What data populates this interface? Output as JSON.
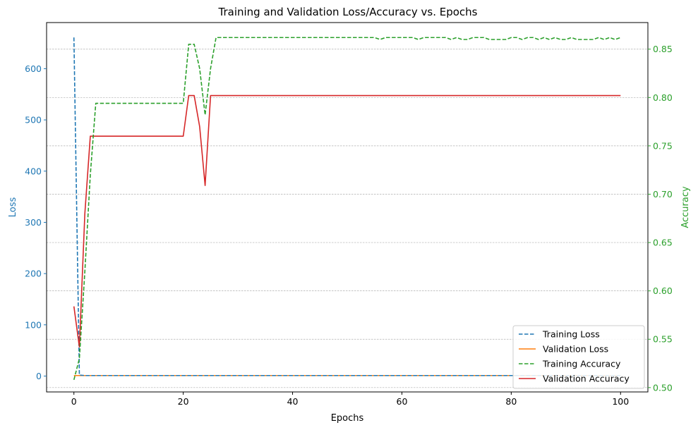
{
  "chart_data": {
    "type": "line",
    "title": "Training and Validation Loss/Accuracy vs. Epochs",
    "xlabel": "Epochs",
    "ylabel_left": "Loss",
    "ylabel_right": "Accuracy",
    "xlim": [
      -5,
      105
    ],
    "ylim_left": [
      -31,
      690
    ],
    "ylim_right": [
      0.4955,
      0.8775
    ],
    "x_ticks": [
      0,
      20,
      40,
      60,
      80,
      100
    ],
    "y_ticks_left": [
      0,
      100,
      200,
      300,
      400,
      500,
      600
    ],
    "y_ticks_right": [
      0.5,
      0.55,
      0.6,
      0.65,
      0.7,
      0.75,
      0.8,
      0.85
    ],
    "y_tick_labels_right": [
      "0.50",
      "0.55",
      "0.60",
      "0.65",
      "0.70",
      "0.75",
      "0.80",
      "0.85"
    ],
    "grid": "right-axis horizontal, dashed",
    "legend_position": "lower-right",
    "colors": {
      "left_axis": "#1f77b4",
      "right_axis": "#2ca02c",
      "training_loss": "#1f77b4",
      "validation_loss": "#ff7f0e",
      "training_accuracy": "#2ca02c",
      "validation_accuracy": "#d62728"
    },
    "series": [
      {
        "name": "Training Loss",
        "axis": "left",
        "style": "dashed",
        "x": [
          0,
          1,
          2,
          3,
          4,
          5,
          10,
          20,
          30,
          40,
          50,
          60,
          70,
          80,
          90,
          100
        ],
        "values": [
          661,
          2,
          1,
          1,
          1,
          1,
          1,
          1,
          1,
          1,
          1,
          1,
          1,
          1,
          1,
          1
        ]
      },
      {
        "name": "Validation Loss",
        "axis": "left",
        "style": "solid",
        "x": [
          0,
          1,
          2,
          3,
          4,
          5,
          10,
          20,
          30,
          40,
          50,
          60,
          70,
          80,
          90,
          100
        ],
        "values": [
          1,
          1,
          1,
          1,
          1,
          1,
          1,
          1,
          1,
          1,
          1,
          1,
          1,
          1,
          1,
          1
        ]
      },
      {
        "name": "Training Accuracy",
        "axis": "right",
        "style": "dashed",
        "x": [
          0,
          1,
          2,
          3,
          4,
          5,
          10,
          15,
          20,
          21,
          22,
          23,
          24,
          25,
          26,
          30,
          40,
          50,
          55,
          56,
          57,
          60,
          62,
          63,
          64,
          68,
          69,
          70,
          71,
          72,
          73,
          74,
          75,
          76,
          78,
          79,
          80,
          81,
          82,
          83,
          84,
          85,
          86,
          87,
          88,
          89,
          90,
          91,
          92,
          95,
          96,
          97,
          98,
          99,
          100
        ],
        "values": [
          0.508,
          0.53,
          0.62,
          0.72,
          0.794,
          0.794,
          0.794,
          0.794,
          0.794,
          0.855,
          0.855,
          0.83,
          0.782,
          0.83,
          0.862,
          0.862,
          0.862,
          0.862,
          0.862,
          0.86,
          0.862,
          0.862,
          0.862,
          0.86,
          0.862,
          0.862,
          0.86,
          0.862,
          0.86,
          0.86,
          0.862,
          0.862,
          0.862,
          0.86,
          0.86,
          0.86,
          0.862,
          0.862,
          0.86,
          0.862,
          0.862,
          0.86,
          0.862,
          0.86,
          0.862,
          0.86,
          0.86,
          0.862,
          0.86,
          0.86,
          0.862,
          0.86,
          0.862,
          0.86,
          0.862
        ]
      },
      {
        "name": "Validation Accuracy",
        "axis": "right",
        "style": "solid",
        "x": [
          0,
          1,
          2,
          3,
          4,
          5,
          10,
          15,
          20,
          21,
          22,
          23,
          24,
          25,
          26,
          30,
          40,
          50,
          60,
          70,
          80,
          90,
          100
        ],
        "values": [
          0.584,
          0.542,
          0.68,
          0.76,
          0.76,
          0.76,
          0.76,
          0.76,
          0.76,
          0.802,
          0.802,
          0.77,
          0.709,
          0.802,
          0.802,
          0.802,
          0.802,
          0.802,
          0.802,
          0.802,
          0.802,
          0.802,
          0.802
        ]
      }
    ]
  }
}
